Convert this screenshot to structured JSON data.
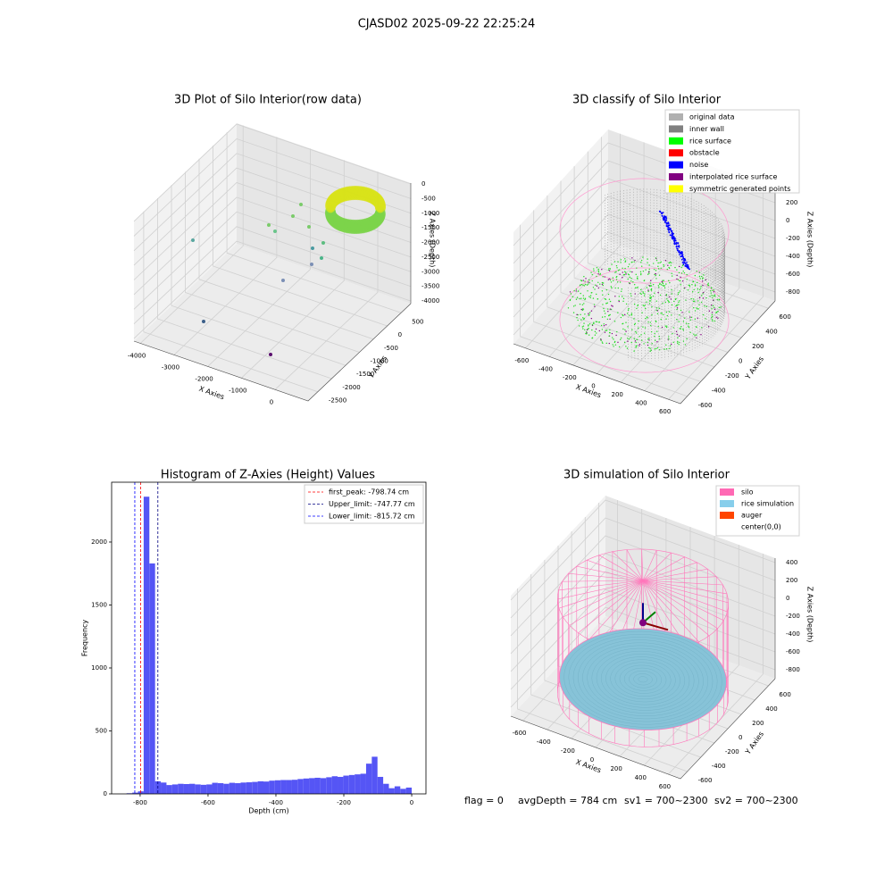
{
  "title": "CJASD02 2025-09-22 22:25:24",
  "chart_data": [
    {
      "type": "scatter3d",
      "title": "3D Plot of Silo Interior(row data)",
      "xlabel": "X Axies",
      "ylabel": "Y Axies",
      "zlabel": "Z Axies (Depth)",
      "xlim": [
        -4190,
        980
      ],
      "xticks": [
        -4000,
        -3000,
        -2000,
        -1000,
        0
      ],
      "ylim": [
        -2850,
        850
      ],
      "yticks": [
        -2500,
        -2000,
        -1500,
        -1000,
        -500,
        0,
        500
      ],
      "zlim": [
        -4090,
        30
      ],
      "zticks": [
        -4000,
        -3500,
        -3000,
        -2500,
        -2000,
        -1500,
        -1000,
        -500,
        0
      ]
    },
    {
      "type": "scatter3d",
      "title": "3D classify of Silo Interior",
      "xlabel": "X Axies",
      "ylabel": "Y Axies",
      "zlabel": "Z Axies (Depth)",
      "xlim": [
        -700,
        700
      ],
      "xticks": [
        -600,
        -400,
        -200,
        0,
        200,
        400,
        600
      ],
      "ylim": [
        -700,
        700
      ],
      "yticks": [
        -600,
        -400,
        -200,
        0,
        200,
        400,
        600
      ],
      "zlim": [
        -900,
        350
      ],
      "zticks": [
        -800,
        -600,
        -400,
        -200,
        0,
        200
      ],
      "series": [
        {
          "name": "original data",
          "color": "#b0b0b0"
        },
        {
          "name": "inner wall",
          "color": "#808080"
        },
        {
          "name": "rice surface",
          "color": "#00ff00"
        },
        {
          "name": "obstacle",
          "color": "#ff0000"
        },
        {
          "name": "noise",
          "color": "#0000ff"
        },
        {
          "name": "interpolated rice surface",
          "color": "#800080"
        },
        {
          "name": "symmetric generated points",
          "color": "#ffff00"
        }
      ]
    },
    {
      "type": "histogram",
      "title": "Histogram of Z-Axies (Height) Values",
      "xlabel": "Depth (cm)",
      "ylabel": "Frequency",
      "color": "#5555f5",
      "bins": [
        -840,
        -823.2,
        -806.4,
        -789.6,
        -772.8,
        -756,
        -739.2,
        -722.4,
        -705.6,
        -688.8,
        -672,
        -655.2,
        -638.4,
        -621.6,
        -604.8,
        -588,
        -571.2,
        -554.4,
        -537.6,
        -520.8,
        -504,
        -487.2,
        -470.4,
        -453.6,
        -436.8,
        -420,
        -403.2,
        -386.4,
        -369.6,
        -352.8,
        -336,
        -319.2,
        -302.4,
        -285.6,
        -268.8,
        -252,
        -235.2,
        -218.4,
        -201.6,
        -184.8,
        -168,
        -151.2,
        -134.4,
        -117.6,
        -100.8,
        -84,
        -67.2,
        -50.4,
        -33.6,
        -16.8,
        0
      ],
      "counts": [
        5,
        10,
        20,
        2360,
        1830,
        100,
        90,
        70,
        75,
        80,
        78,
        80,
        75,
        72,
        75,
        88,
        85,
        80,
        88,
        85,
        90,
        92,
        95,
        100,
        98,
        105,
        108,
        110,
        110,
        112,
        118,
        122,
        125,
        128,
        125,
        132,
        140,
        135,
        145,
        150,
        155,
        160,
        240,
        295,
        135,
        80,
        45,
        60,
        40,
        50
      ],
      "xlim": [
        -884,
        42
      ],
      "xticks": [
        -800,
        -600,
        -400,
        -200,
        0
      ],
      "ylim": [
        0,
        2475
      ],
      "yticks": [
        0,
        500,
        1000,
        1500,
        2000
      ],
      "vlines": [
        {
          "name": "first_peak: -798.74 cm",
          "value": -798.74,
          "color": "#ff0000"
        },
        {
          "name": "Upper_limit: -747.77 cm",
          "value": -747.77,
          "color": "#000080"
        },
        {
          "name": "Lower_limit: -815.72 cm",
          "value": -815.72,
          "color": "#0000ff"
        }
      ]
    },
    {
      "type": "surface3d",
      "title": "3D simulation of Silo Interior",
      "xlabel": "X Axies",
      "ylabel": "Y Axies",
      "zlabel": "Z Axies (Depth)",
      "xlim": [
        -700,
        700
      ],
      "xticks": [
        -600,
        -400,
        -200,
        0,
        200,
        400,
        600
      ],
      "ylim": [
        -700,
        700
      ],
      "yticks": [
        -600,
        -400,
        -200,
        0,
        200,
        400,
        600
      ],
      "zlim": [
        -900,
        450
      ],
      "zticks": [
        -800,
        -600,
        -400,
        -200,
        0,
        200,
        400
      ],
      "series": [
        {
          "name": "silo",
          "color": "#ff69b4"
        },
        {
          "name": "rice simulation",
          "color": "#87ceeb"
        },
        {
          "name": "auger",
          "color": "#ff4500"
        },
        {
          "name": "center(0,0)",
          "color": "#ffffff"
        }
      ]
    }
  ],
  "status": {
    "flag": "flag = 0",
    "avg_depth": "avgDepth = 784 cm",
    "sv1": "sv1 = 700~2300",
    "sv2": "sv2 = 700~2300"
  }
}
